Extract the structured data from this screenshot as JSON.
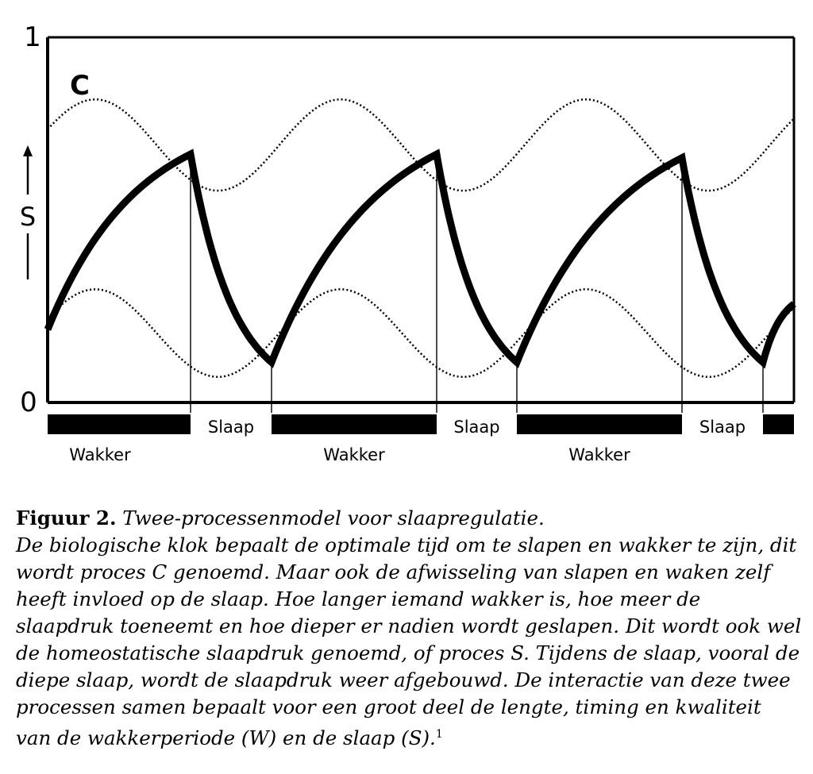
{
  "chart_data": {
    "type": "line",
    "title": "",
    "xlabel": "",
    "ylabel": "S",
    "ylim": [
      0,
      1
    ],
    "y_ticks": [
      "0",
      "1"
    ],
    "curve_label": "C",
    "series": [
      {
        "name": "S",
        "style": "solid-thick",
        "segments": [
          {
            "phase": "wake",
            "start": 0.2,
            "end": 0.68
          },
          {
            "phase": "sleep",
            "start": 0.68,
            "end": 0.11
          },
          {
            "phase": "wake",
            "start": 0.11,
            "end": 0.68
          },
          {
            "phase": "sleep",
            "start": 0.68,
            "end": 0.11
          },
          {
            "phase": "wake",
            "start": 0.11,
            "end": 0.67
          },
          {
            "phase": "sleep",
            "start": 0.67,
            "end": 0.11
          },
          {
            "phase": "wake",
            "start": 0.11,
            "end": 0.27
          }
        ]
      },
      {
        "name": "C",
        "style": "dotted",
        "level": "upper",
        "values_wake_peak": 0.83,
        "values_sleep_trough": 0.58
      },
      {
        "style": "dotted",
        "level": "lower",
        "values_wake_peak": 0.31,
        "values_sleep_trough": 0.07
      }
    ],
    "phases": [
      {
        "state": "wake",
        "label": "Wakker"
      },
      {
        "state": "sleep",
        "label": "Slaap"
      },
      {
        "state": "wake",
        "label": "Wakker"
      },
      {
        "state": "sleep",
        "label": "Slaap"
      },
      {
        "state": "wake",
        "label": "Wakker"
      },
      {
        "state": "sleep",
        "label": "Slaap"
      },
      {
        "state": "wake",
        "label": ""
      }
    ],
    "colors": {
      "line": "#000000",
      "background": "#ffffff"
    }
  },
  "caption": {
    "number": "Figuur 2.",
    "title": "Twee-processenmodel voor slaapregulatie.",
    "body": "De biologische klok bepaalt de optimale tijd om te slapen en wakker te zijn, dit wordt proces C genoemd. Maar ook de afwisseling van slapen en waken zelf heeft invloed op de slaap. Hoe langer iemand wakker is, hoe meer de slaapdruk toeneemt en hoe dieper er nadien wordt geslapen. Dit wordt ook wel de homeostatische slaapdruk genoemd, of proces S. Tijdens de slaap, vooral de diepe slaap, wordt de slaapdruk weer afgebouwd. De interactie van deze twee processen samen bepaalt voor een groot deel de lengte, timing en kwaliteit van de wakkerperiode (W) en de slaap (S).",
    "footnote": "1"
  }
}
